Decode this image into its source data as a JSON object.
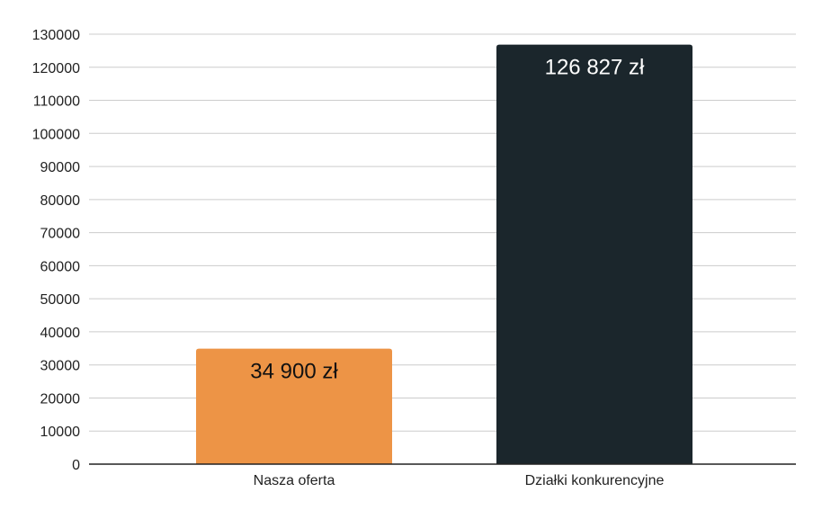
{
  "chart_data": {
    "type": "bar",
    "title": "",
    "xlabel": "",
    "ylabel": "",
    "categories": [
      "Nasza oferta",
      "Działki konkurencyjne"
    ],
    "values": [
      34900,
      126827
    ],
    "value_labels": [
      "34 900 zł",
      "126 827 zł"
    ],
    "bar_colors": [
      "#ED9446",
      "#1B262C"
    ],
    "value_label_colors": [
      "#111111",
      "#ffffff"
    ],
    "ylim": [
      0,
      130000
    ],
    "ytick_step": 10000,
    "yticks": [
      "0",
      "10000",
      "20000",
      "30000",
      "40000",
      "50000",
      "60000",
      "70000",
      "80000",
      "90000",
      "100000",
      "110000",
      "120000",
      "130000"
    ],
    "grid": true,
    "legend": "none",
    "grid_color": "#CCCCCC",
    "axis_color": "#222222",
    "tick_label_color": "#222222"
  }
}
